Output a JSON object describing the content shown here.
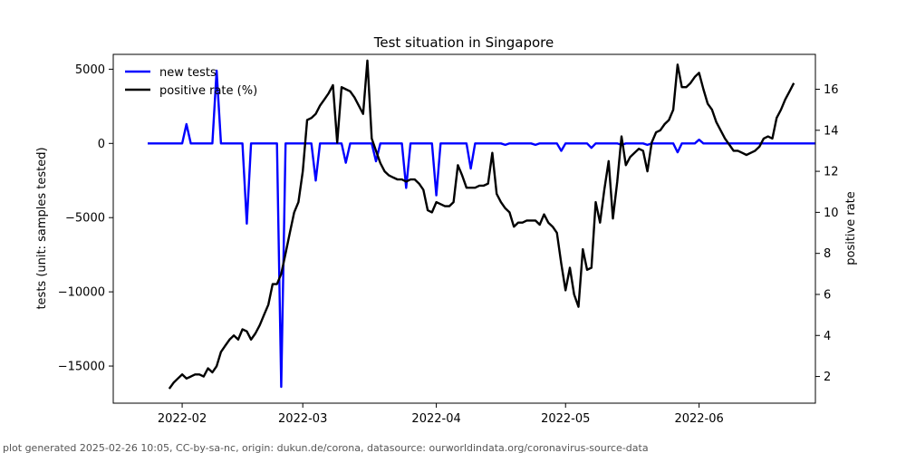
{
  "chart_data": {
    "type": "line",
    "title": "Test situation in Singapore",
    "ylabel_left": "tests (unit: samples tested)",
    "ylabel_right": "positive rate",
    "ylim_left": [
      -17500,
      6000
    ],
    "ylim_right": [
      0.7,
      17.7
    ],
    "yticks_left": [
      5000,
      0,
      -5000,
      -10000,
      -15000
    ],
    "yticks_left_labels": [
      "5000",
      "0",
      "−5000",
      "−10000",
      "−15000"
    ],
    "yticks_right": [
      2,
      4,
      6,
      8,
      10,
      12,
      14,
      16
    ],
    "x_start": "2022-01-16",
    "x_end": "2022-06-28",
    "xticks": [
      {
        "label": "2022-02",
        "day": 16
      },
      {
        "label": "2022-03",
        "day": 44
      },
      {
        "label": "2022-04",
        "day": 75
      },
      {
        "label": "2022-05",
        "day": 105
      },
      {
        "label": "2022-06",
        "day": 136
      }
    ],
    "legend": [
      "new tests",
      "positive rate (%)"
    ],
    "series": [
      {
        "name": "new tests",
        "color": "#0000ff",
        "axis": "left",
        "points": [
          [
            8,
            0
          ],
          [
            14,
            0
          ],
          [
            15,
            0
          ],
          [
            16,
            0
          ],
          [
            17,
            1300
          ],
          [
            18,
            0
          ],
          [
            23,
            0
          ],
          [
            24,
            4900
          ],
          [
            25,
            0
          ],
          [
            30,
            0
          ],
          [
            31,
            -5400
          ],
          [
            32,
            0
          ],
          [
            38,
            0
          ],
          [
            39,
            -16400
          ],
          [
            40,
            0
          ],
          [
            46,
            0
          ],
          [
            47,
            -2500
          ],
          [
            48,
            0
          ],
          [
            53,
            0
          ],
          [
            54,
            -1300
          ],
          [
            55,
            0
          ],
          [
            60,
            0
          ],
          [
            61,
            -1200
          ],
          [
            62,
            0
          ],
          [
            67,
            0
          ],
          [
            68,
            -3000
          ],
          [
            69,
            0
          ],
          [
            74,
            0
          ],
          [
            75,
            -3500
          ],
          [
            76,
            0
          ],
          [
            82,
            0
          ],
          [
            83,
            -1700
          ],
          [
            84,
            0
          ],
          [
            90,
            0
          ],
          [
            91,
            -100
          ],
          [
            92,
            0
          ],
          [
            97,
            0
          ],
          [
            98,
            -100
          ],
          [
            99,
            0
          ],
          [
            103,
            0
          ],
          [
            104,
            -500
          ],
          [
            105,
            0
          ],
          [
            110,
            0
          ],
          [
            111,
            -300
          ],
          [
            112,
            0
          ],
          [
            117,
            0
          ],
          [
            118,
            -100
          ],
          [
            119,
            0
          ],
          [
            123,
            0
          ],
          [
            124,
            -100
          ],
          [
            125,
            0
          ],
          [
            130,
            0
          ],
          [
            131,
            -600
          ],
          [
            132,
            0
          ],
          [
            135,
            0
          ],
          [
            136,
            250
          ],
          [
            137,
            0
          ],
          [
            150,
            0
          ],
          [
            163,
            0
          ]
        ]
      },
      {
        "name": "positive rate (%)",
        "color": "#000000",
        "axis": "right",
        "points": [
          [
            13,
            1.4
          ],
          [
            14,
            1.7
          ],
          [
            15,
            1.9
          ],
          [
            16,
            2.1
          ],
          [
            17,
            1.9
          ],
          [
            18,
            2.0
          ],
          [
            19,
            2.1
          ],
          [
            20,
            2.1
          ],
          [
            21,
            2.0
          ],
          [
            22,
            2.4
          ],
          [
            23,
            2.2
          ],
          [
            24,
            2.5
          ],
          [
            25,
            3.2
          ],
          [
            26,
            3.5
          ],
          [
            27,
            3.8
          ],
          [
            28,
            4.0
          ],
          [
            29,
            3.8
          ],
          [
            30,
            4.3
          ],
          [
            31,
            4.2
          ],
          [
            32,
            3.8
          ],
          [
            33,
            4.1
          ],
          [
            34,
            4.5
          ],
          [
            35,
            5.0
          ],
          [
            36,
            5.5
          ],
          [
            37,
            6.5
          ],
          [
            38,
            6.5
          ],
          [
            39,
            7.0
          ],
          [
            40,
            8.0
          ],
          [
            41,
            9.0
          ],
          [
            42,
            10.0
          ],
          [
            43,
            10.5
          ],
          [
            44,
            12.0
          ],
          [
            45,
            14.5
          ],
          [
            46,
            14.6
          ],
          [
            47,
            14.8
          ],
          [
            48,
            15.2
          ],
          [
            49,
            15.5
          ],
          [
            50,
            15.8
          ],
          [
            51,
            16.2
          ],
          [
            52,
            13.4
          ],
          [
            53,
            16.1
          ],
          [
            54,
            16.0
          ],
          [
            55,
            15.9
          ],
          [
            56,
            15.6
          ],
          [
            57,
            15.2
          ],
          [
            58,
            14.8
          ],
          [
            59,
            17.4
          ],
          [
            60,
            13.6
          ],
          [
            61,
            13.0
          ],
          [
            62,
            12.4
          ],
          [
            63,
            12.0
          ],
          [
            64,
            11.8
          ],
          [
            65,
            11.7
          ],
          [
            66,
            11.6
          ],
          [
            67,
            11.6
          ],
          [
            68,
            11.5
          ],
          [
            69,
            11.6
          ],
          [
            70,
            11.6
          ],
          [
            71,
            11.4
          ],
          [
            72,
            11.1
          ],
          [
            73,
            10.1
          ],
          [
            74,
            10.0
          ],
          [
            75,
            10.5
          ],
          [
            76,
            10.4
          ],
          [
            77,
            10.3
          ],
          [
            78,
            10.3
          ],
          [
            79,
            10.5
          ],
          [
            80,
            12.3
          ],
          [
            81,
            11.8
          ],
          [
            82,
            11.2
          ],
          [
            83,
            11.2
          ],
          [
            84,
            11.2
          ],
          [
            85,
            11.3
          ],
          [
            86,
            11.3
          ],
          [
            87,
            11.4
          ],
          [
            88,
            12.9
          ],
          [
            89,
            10.9
          ],
          [
            90,
            10.5
          ],
          [
            91,
            10.2
          ],
          [
            92,
            10.0
          ],
          [
            93,
            9.3
          ],
          [
            94,
            9.5
          ],
          [
            95,
            9.5
          ],
          [
            96,
            9.6
          ],
          [
            97,
            9.6
          ],
          [
            98,
            9.6
          ],
          [
            99,
            9.4
          ],
          [
            100,
            9.9
          ],
          [
            101,
            9.5
          ],
          [
            102,
            9.3
          ],
          [
            103,
            9.0
          ],
          [
            104,
            7.5
          ],
          [
            105,
            6.2
          ],
          [
            106,
            7.3
          ],
          [
            107,
            6.0
          ],
          [
            108,
            5.4
          ],
          [
            109,
            8.2
          ],
          [
            110,
            7.2
          ],
          [
            111,
            7.3
          ],
          [
            112,
            10.5
          ],
          [
            113,
            9.5
          ],
          [
            114,
            11.1
          ],
          [
            115,
            12.5
          ],
          [
            116,
            9.7
          ],
          [
            117,
            11.5
          ],
          [
            118,
            13.7
          ],
          [
            119,
            12.3
          ],
          [
            120,
            12.7
          ],
          [
            121,
            12.9
          ],
          [
            122,
            13.1
          ],
          [
            123,
            13.0
          ],
          [
            124,
            12.0
          ],
          [
            125,
            13.4
          ],
          [
            126,
            13.9
          ],
          [
            127,
            14.0
          ],
          [
            128,
            14.3
          ],
          [
            129,
            14.5
          ],
          [
            130,
            15.0
          ],
          [
            131,
            17.2
          ],
          [
            132,
            16.1
          ],
          [
            133,
            16.1
          ],
          [
            134,
            16.3
          ],
          [
            135,
            16.6
          ],
          [
            136,
            16.8
          ],
          [
            137,
            16.0
          ],
          [
            138,
            15.3
          ],
          [
            139,
            15.0
          ],
          [
            140,
            14.4
          ],
          [
            141,
            14.0
          ],
          [
            142,
            13.6
          ],
          [
            143,
            13.3
          ],
          [
            144,
            13.0
          ],
          [
            145,
            13.0
          ],
          [
            146,
            12.9
          ],
          [
            147,
            12.8
          ],
          [
            148,
            12.9
          ],
          [
            149,
            13.0
          ],
          [
            150,
            13.2
          ],
          [
            151,
            13.6
          ],
          [
            152,
            13.7
          ],
          [
            153,
            13.6
          ],
          [
            154,
            14.6
          ],
          [
            155,
            15.0
          ],
          [
            156,
            15.5
          ],
          [
            157,
            15.9
          ],
          [
            158,
            16.3
          ]
        ]
      }
    ]
  },
  "footer": "plot generated 2025-02-26 10:05, CC-by-sa-nc, origin: dukun.de/corona, datasource: ourworldindata.org/coronavirus-source-data"
}
